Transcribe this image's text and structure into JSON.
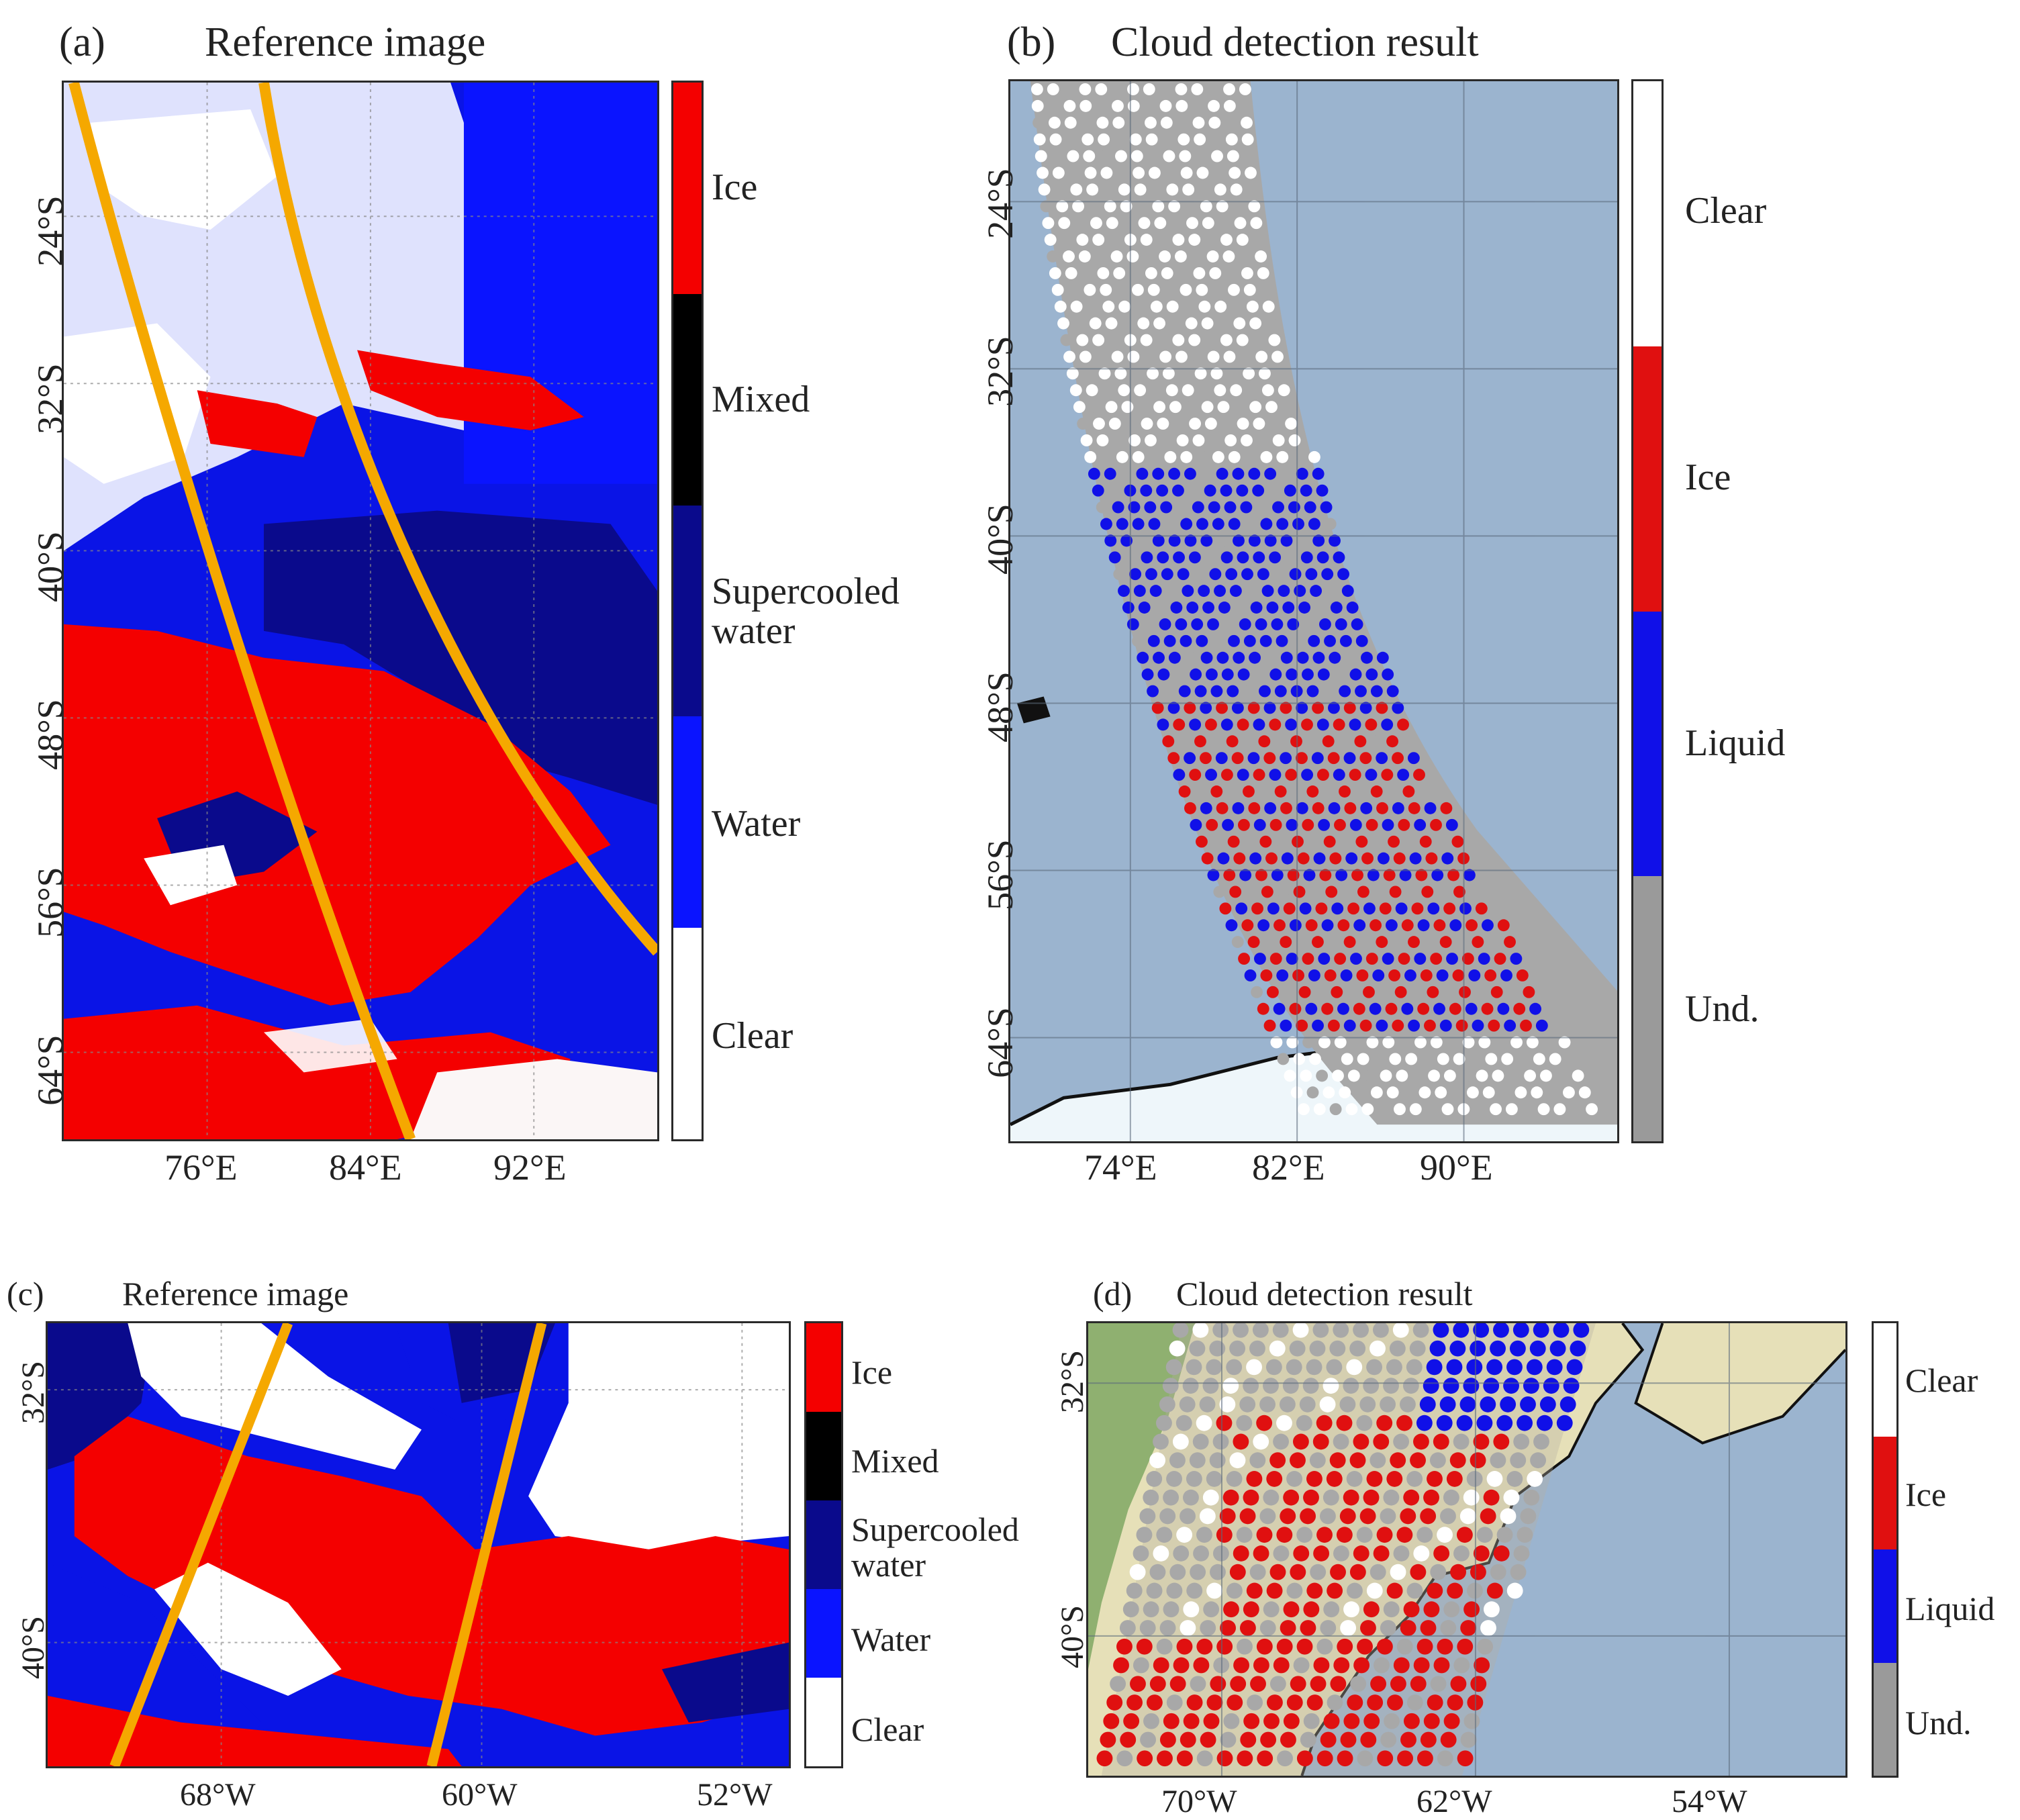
{
  "panels": {
    "a": {
      "letter": "(a)",
      "title": "Reference image",
      "colorbar": [
        "Ice",
        "Mixed",
        "Supercooled\nwater",
        "Water",
        "Clear"
      ],
      "colorbar_colors": [
        "#f40000",
        "#000000",
        "#0a0a8c",
        "#0a14ff",
        "#ffffff"
      ],
      "lat_ticks": [
        "24°S",
        "32°S",
        "40°S",
        "48°S",
        "56°S",
        "64°S"
      ],
      "lon_ticks": [
        "76°E",
        "84°E",
        "92°E"
      ]
    },
    "b": {
      "letter": "(b)",
      "title": "Cloud detection result",
      "colorbar": [
        "Clear",
        "Ice",
        "Liquid",
        "Und."
      ],
      "colorbar_colors": [
        "#ffffff",
        "#e01010",
        "#1010e8",
        "#9a9a9a"
      ],
      "lat_ticks": [
        "24°S",
        "32°S",
        "40°S",
        "48°S",
        "56°S",
        "64°S"
      ],
      "lon_ticks": [
        "74°E",
        "82°E",
        "90°E"
      ]
    },
    "c": {
      "letter": "(c)",
      "title": "Reference image",
      "colorbar": [
        "Ice",
        "Mixed",
        "Supercooled\nwater",
        "Water",
        "Clear"
      ],
      "colorbar_colors": [
        "#f40000",
        "#000000",
        "#0a0a8c",
        "#0a14ff",
        "#ffffff"
      ],
      "lat_ticks": [
        "32°S",
        "40°S"
      ],
      "lon_ticks": [
        "68°W",
        "60°W",
        "52°W"
      ]
    },
    "d": {
      "letter": "(d)",
      "title": "Cloud detection result",
      "colorbar": [
        "Clear",
        "Ice",
        "Liquid",
        "Und."
      ],
      "colorbar_colors": [
        "#ffffff",
        "#e01010",
        "#1010e8",
        "#9a9a9a"
      ],
      "lat_ticks": [
        "32°S",
        "40°S"
      ],
      "lon_ticks": [
        "70°W",
        "62°W",
        "54°W"
      ]
    }
  },
  "colors": {
    "ocean": "#9bb4cf",
    "swath": "#a8a8a8",
    "track": "#f5a800",
    "land": "#e6e0b8"
  }
}
